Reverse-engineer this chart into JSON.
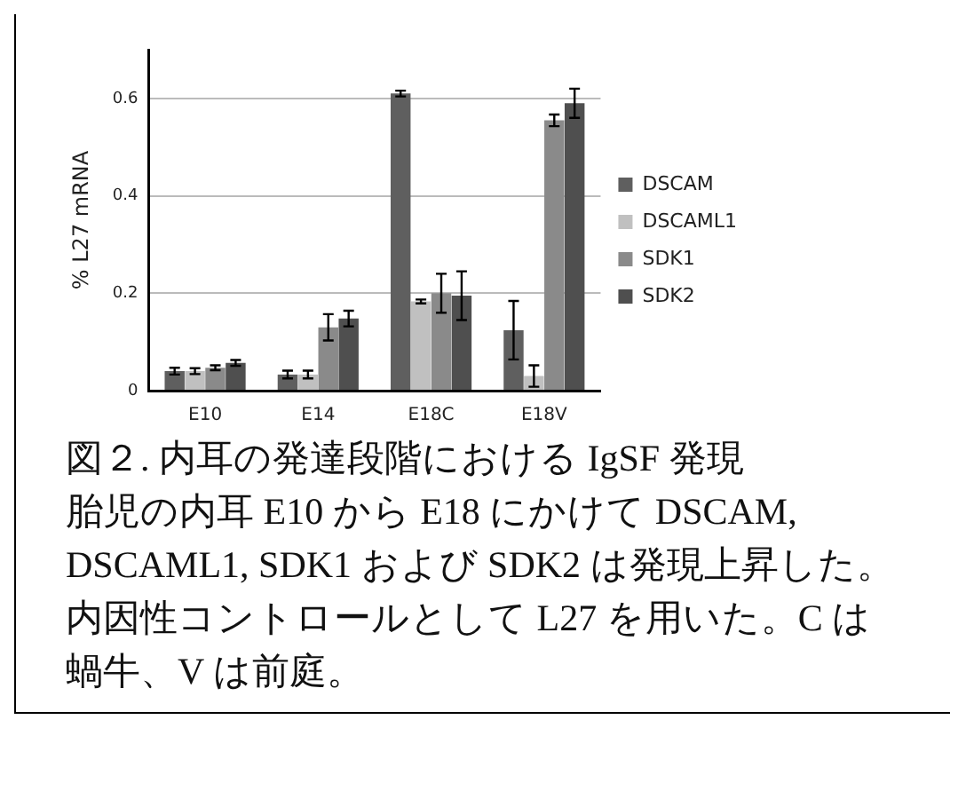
{
  "chart_data": {
    "type": "bar",
    "title": "図２. 内耳の発達段階における IgSF 発現",
    "ylabel": "% L27 mRNA",
    "categories": [
      "E10",
      "E14",
      "E18C",
      "E18V"
    ],
    "series": [
      {
        "name": "DSCAM",
        "color": "#5f5f5f",
        "values": [
          0.04,
          0.033,
          0.61,
          0.124
        ],
        "errors": [
          0.007,
          0.008,
          0.006,
          0.06
        ]
      },
      {
        "name": "DSCAML1",
        "color": "#c0c0c0",
        "values": [
          0.04,
          0.033,
          0.183,
          0.03
        ],
        "errors": [
          0.006,
          0.008,
          0.004,
          0.022
        ]
      },
      {
        "name": "SDK1",
        "color": "#8a8a8a",
        "values": [
          0.047,
          0.13,
          0.2,
          0.555
        ],
        "errors": [
          0.005,
          0.027,
          0.04,
          0.012
        ]
      },
      {
        "name": "SDK2",
        "color": "#4f4f4f",
        "values": [
          0.057,
          0.148,
          0.195,
          0.59
        ],
        "errors": [
          0.006,
          0.016,
          0.05,
          0.03
        ]
      }
    ],
    "ylim": [
      0,
      0.7
    ],
    "yticks": [
      0,
      0.2,
      0.4,
      0.6
    ],
    "grid": "y",
    "legend": "right",
    "annotations": [
      "胎児の内耳 E10 から E18 にかけて DSCAM, DSCAML1, SDK1 および SDK2 は発現上昇した。内因性コントロールとして L27 を用いた。C は蝸牛、V は前庭。"
    ]
  }
}
